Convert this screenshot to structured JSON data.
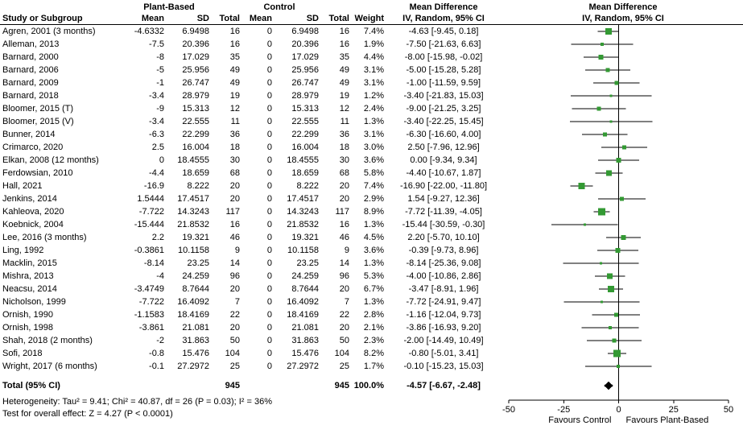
{
  "columns": {
    "group1": "Plant-Based",
    "group2": "Control",
    "study": "Study or Subgroup",
    "mean": "Mean",
    "sd": "SD",
    "total": "Total",
    "weight": "Weight",
    "md_header": "Mean Difference",
    "md_sub": "IV, Random, 95% CI",
    "plot_header": "Mean Difference",
    "plot_sub": "IV, Random, 95% CI"
  },
  "chart_data": {
    "type": "forest",
    "marker_color": "#339933",
    "axis": {
      "min": -50,
      "max": 50,
      "ticks": [
        -50,
        -25,
        0,
        25,
        50
      ]
    },
    "footer_left": "Favours Control",
    "footer_right": "Favours Plant-Based",
    "studies": [
      {
        "study": "Agren, 2001 (3 months)",
        "mean1": "-4.6332",
        "sd1": "6.9498",
        "total1": "16",
        "mean2": "0",
        "sd2": "6.9498",
        "total2": "16",
        "weight": "7.4%",
        "ci_text": "-4.63 [-9.45, 0.18]",
        "est": -4.63,
        "lo": -9.45,
        "hi": 0.18,
        "w": 7.4
      },
      {
        "study": "Alleman, 2013",
        "mean1": "-7.5",
        "sd1": "20.396",
        "total1": "16",
        "mean2": "0",
        "sd2": "20.396",
        "total2": "16",
        "weight": "1.9%",
        "ci_text": "-7.50 [-21.63, 6.63]",
        "est": -7.5,
        "lo": -21.63,
        "hi": 6.63,
        "w": 1.9
      },
      {
        "study": "Barnard, 2000",
        "mean1": "-8",
        "sd1": "17.029",
        "total1": "35",
        "mean2": "0",
        "sd2": "17.029",
        "total2": "35",
        "weight": "4.4%",
        "ci_text": "-8.00 [-15.98, -0.02]",
        "est": -8.0,
        "lo": -15.98,
        "hi": -0.02,
        "w": 4.4
      },
      {
        "study": "Barnard, 2006",
        "mean1": "-5",
        "sd1": "25.956",
        "total1": "49",
        "mean2": "0",
        "sd2": "25.956",
        "total2": "49",
        "weight": "3.1%",
        "ci_text": "-5.00 [-15.28, 5.28]",
        "est": -5.0,
        "lo": -15.28,
        "hi": 5.28,
        "w": 3.1
      },
      {
        "study": "Barnard, 2009",
        "mean1": "-1",
        "sd1": "26.747",
        "total1": "49",
        "mean2": "0",
        "sd2": "26.747",
        "total2": "49",
        "weight": "3.1%",
        "ci_text": "-1.00 [-11.59, 9.59]",
        "est": -1.0,
        "lo": -11.59,
        "hi": 9.59,
        "w": 3.1
      },
      {
        "study": "Barnard, 2018",
        "mean1": "-3.4",
        "sd1": "28.979",
        "total1": "19",
        "mean2": "0",
        "sd2": "28.979",
        "total2": "19",
        "weight": "1.2%",
        "ci_text": "-3.40 [-21.83, 15.03]",
        "est": -3.4,
        "lo": -21.83,
        "hi": 15.03,
        "w": 1.2
      },
      {
        "study": "Bloomer, 2015 (T)",
        "mean1": "-9",
        "sd1": "15.313",
        "total1": "12",
        "mean2": "0",
        "sd2": "15.313",
        "total2": "12",
        "weight": "2.4%",
        "ci_text": "-9.00 [-21.25, 3.25]",
        "est": -9.0,
        "lo": -21.25,
        "hi": 3.25,
        "w": 2.4
      },
      {
        "study": "Bloomer, 2015 (V)",
        "mean1": "-3.4",
        "sd1": "22.555",
        "total1": "11",
        "mean2": "0",
        "sd2": "22.555",
        "total2": "11",
        "weight": "1.3%",
        "ci_text": "-3.40 [-22.25, 15.45]",
        "est": -3.4,
        "lo": -22.25,
        "hi": 15.45,
        "w": 1.3
      },
      {
        "study": "Bunner, 2014",
        "mean1": "-6.3",
        "sd1": "22.299",
        "total1": "36",
        "mean2": "0",
        "sd2": "22.299",
        "total2": "36",
        "weight": "3.1%",
        "ci_text": "-6.30 [-16.60, 4.00]",
        "est": -6.3,
        "lo": -16.6,
        "hi": 4.0,
        "w": 3.1
      },
      {
        "study": "Crimarco, 2020",
        "mean1": "2.5",
        "sd1": "16.004",
        "total1": "18",
        "mean2": "0",
        "sd2": "16.004",
        "total2": "18",
        "weight": "3.0%",
        "ci_text": "2.50 [-7.96, 12.96]",
        "est": 2.5,
        "lo": -7.96,
        "hi": 12.96,
        "w": 3.0
      },
      {
        "study": "Elkan, 2008 (12 months)",
        "mean1": "0",
        "sd1": "18.4555",
        "total1": "30",
        "mean2": "0",
        "sd2": "18.4555",
        "total2": "30",
        "weight": "3.6%",
        "ci_text": "0.00 [-9.34, 9.34]",
        "est": 0.0,
        "lo": -9.34,
        "hi": 9.34,
        "w": 3.6
      },
      {
        "study": "Ferdowsian, 2010",
        "mean1": "-4.4",
        "sd1": "18.659",
        "total1": "68",
        "mean2": "0",
        "sd2": "18.659",
        "total2": "68",
        "weight": "5.8%",
        "ci_text": "-4.40 [-10.67, 1.87]",
        "est": -4.4,
        "lo": -10.67,
        "hi": 1.87,
        "w": 5.8
      },
      {
        "study": "Hall, 2021",
        "mean1": "-16.9",
        "sd1": "8.222",
        "total1": "20",
        "mean2": "0",
        "sd2": "8.222",
        "total2": "20",
        "weight": "7.4%",
        "ci_text": "-16.90 [-22.00, -11.80]",
        "est": -16.9,
        "lo": -22.0,
        "hi": -11.8,
        "w": 7.4
      },
      {
        "study": "Jenkins, 2014",
        "mean1": "1.5444",
        "sd1": "17.4517",
        "total1": "20",
        "mean2": "0",
        "sd2": "17.4517",
        "total2": "20",
        "weight": "2.9%",
        "ci_text": "1.54 [-9.27, 12.36]",
        "est": 1.54,
        "lo": -9.27,
        "hi": 12.36,
        "w": 2.9
      },
      {
        "study": "Kahleova, 2020",
        "mean1": "-7.722",
        "sd1": "14.3243",
        "total1": "117",
        "mean2": "0",
        "sd2": "14.3243",
        "total2": "117",
        "weight": "8.9%",
        "ci_text": "-7.72 [-11.39, -4.05]",
        "est": -7.72,
        "lo": -11.39,
        "hi": -4.05,
        "w": 8.9
      },
      {
        "study": "Koebnick, 2004",
        "mean1": "-15.444",
        "sd1": "21.8532",
        "total1": "16",
        "mean2": "0",
        "sd2": "21.8532",
        "total2": "16",
        "weight": "1.3%",
        "ci_text": "-15.44 [-30.59, -0.30]",
        "est": -15.44,
        "lo": -30.59,
        "hi": -0.3,
        "w": 1.3
      },
      {
        "study": "Lee, 2016 (3 months)",
        "mean1": "2.2",
        "sd1": "19.321",
        "total1": "46",
        "mean2": "0",
        "sd2": "19.321",
        "total2": "46",
        "weight": "4.5%",
        "ci_text": "2.20 [-5.70, 10.10]",
        "est": 2.2,
        "lo": -5.7,
        "hi": 10.1,
        "w": 4.5
      },
      {
        "study": "Ling, 1992",
        "mean1": "-0.3861",
        "sd1": "10.1158",
        "total1": "9",
        "mean2": "0",
        "sd2": "10.1158",
        "total2": "9",
        "weight": "3.6%",
        "ci_text": "-0.39 [-9.73, 8.96]",
        "est": -0.39,
        "lo": -9.73,
        "hi": 8.96,
        "w": 3.6
      },
      {
        "study": "Macklin, 2015",
        "mean1": "-8.14",
        "sd1": "23.25",
        "total1": "14",
        "mean2": "0",
        "sd2": "23.25",
        "total2": "14",
        "weight": "1.3%",
        "ci_text": "-8.14 [-25.36, 9.08]",
        "est": -8.14,
        "lo": -25.36,
        "hi": 9.08,
        "w": 1.3
      },
      {
        "study": "Mishra, 2013",
        "mean1": "-4",
        "sd1": "24.259",
        "total1": "96",
        "mean2": "0",
        "sd2": "24.259",
        "total2": "96",
        "weight": "5.3%",
        "ci_text": "-4.00 [-10.86, 2.86]",
        "est": -4.0,
        "lo": -10.86,
        "hi": 2.86,
        "w": 5.3
      },
      {
        "study": "Neacsu, 2014",
        "mean1": "-3.4749",
        "sd1": "8.7644",
        "total1": "20",
        "mean2": "0",
        "sd2": "8.7644",
        "total2": "20",
        "weight": "6.7%",
        "ci_text": "-3.47 [-8.91, 1.96]",
        "est": -3.47,
        "lo": -8.91,
        "hi": 1.96,
        "w": 6.7
      },
      {
        "study": "Nicholson, 1999",
        "mean1": "-7.722",
        "sd1": "16.4092",
        "total1": "7",
        "mean2": "0",
        "sd2": "16.4092",
        "total2": "7",
        "weight": "1.3%",
        "ci_text": "-7.72 [-24.91, 9.47]",
        "est": -7.72,
        "lo": -24.91,
        "hi": 9.47,
        "w": 1.3
      },
      {
        "study": "Ornish, 1990",
        "mean1": "-1.1583",
        "sd1": "18.4169",
        "total1": "22",
        "mean2": "0",
        "sd2": "18.4169",
        "total2": "22",
        "weight": "2.8%",
        "ci_text": "-1.16 [-12.04, 9.73]",
        "est": -1.16,
        "lo": -12.04,
        "hi": 9.73,
        "w": 2.8
      },
      {
        "study": "Ornish, 1998",
        "mean1": "-3.861",
        "sd1": "21.081",
        "total1": "20",
        "mean2": "0",
        "sd2": "21.081",
        "total2": "20",
        "weight": "2.1%",
        "ci_text": "-3.86 [-16.93, 9.20]",
        "est": -3.86,
        "lo": -16.93,
        "hi": 9.2,
        "w": 2.1
      },
      {
        "study": "Shah, 2018 (2 months)",
        "mean1": "-2",
        "sd1": "31.863",
        "total1": "50",
        "mean2": "0",
        "sd2": "31.863",
        "total2": "50",
        "weight": "2.3%",
        "ci_text": "-2.00 [-14.49, 10.49]",
        "est": -2.0,
        "lo": -14.49,
        "hi": 10.49,
        "w": 2.3
      },
      {
        "study": "Sofi, 2018",
        "mean1": "-0.8",
        "sd1": "15.476",
        "total1": "104",
        "mean2": "0",
        "sd2": "15.476",
        "total2": "104",
        "weight": "8.2%",
        "ci_text": "-0.80 [-5.01, 3.41]",
        "est": -0.8,
        "lo": -5.01,
        "hi": 3.41,
        "w": 8.2
      },
      {
        "study": "Wright, 2017 (6 months)",
        "mean1": "-0.1",
        "sd1": "27.2972",
        "total1": "25",
        "mean2": "0",
        "sd2": "27.2972",
        "total2": "25",
        "weight": "1.7%",
        "ci_text": "-0.10 [-15.23, 15.03]",
        "est": -0.1,
        "lo": -15.23,
        "hi": 15.03,
        "w": 1.7
      }
    ],
    "total": {
      "label": "Total (95% CI)",
      "total1": "945",
      "total2": "945",
      "weight": "100.0%",
      "ci_text": "-4.57 [-6.67, -2.48]",
      "est": -4.57,
      "lo": -6.67,
      "hi": -2.48
    }
  },
  "footnotes": {
    "heterogeneity": "Heterogeneity: Tau² = 9.41; Chi² = 40.87, df = 26 (P = 0.03); I² = 36%",
    "overall": "Test for overall effect: Z = 4.27 (P < 0.0001)"
  }
}
